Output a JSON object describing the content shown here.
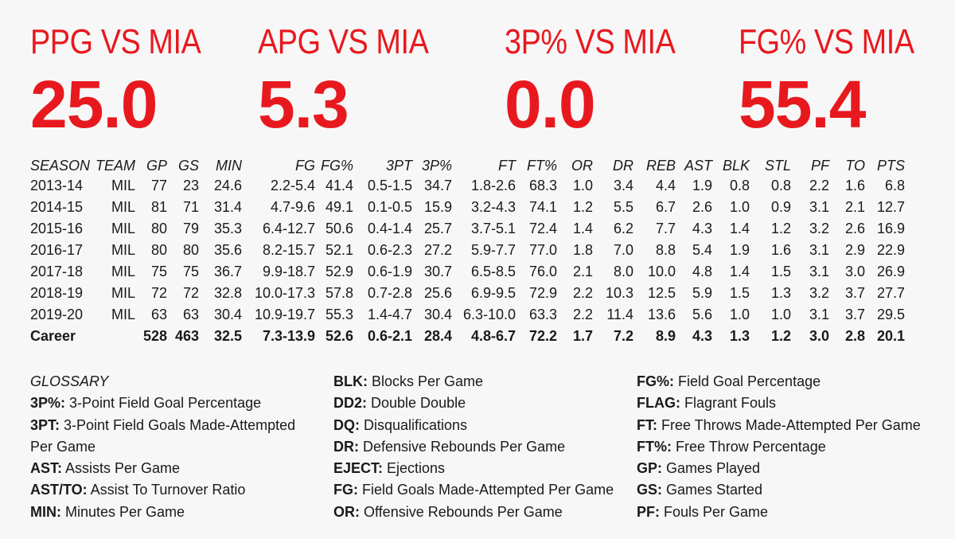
{
  "headline_stats": [
    {
      "label": "PPG VS MIA",
      "value": "25.0"
    },
    {
      "label": "APG VS MIA",
      "value": "5.3"
    },
    {
      "label": "3P% VS MIA",
      "value": "0.0"
    },
    {
      "label": "FG% VS MIA",
      "value": "55.4"
    }
  ],
  "table": {
    "headers": [
      "SEASON",
      "TEAM",
      "GP",
      "GS",
      "MIN",
      "FG",
      "FG%",
      "3PT",
      "3P%",
      "FT",
      "FT%",
      "OR",
      "DR",
      "REB",
      "AST",
      "BLK",
      "STL",
      "PF",
      "TO",
      "PTS"
    ],
    "rows": [
      [
        "2013-14",
        "MIL",
        "77",
        "23",
        "24.6",
        "2.2-5.4",
        "41.4",
        "0.5-1.5",
        "34.7",
        "1.8-2.6",
        "68.3",
        "1.0",
        "3.4",
        "4.4",
        "1.9",
        "0.8",
        "0.8",
        "2.2",
        "1.6",
        "6.8"
      ],
      [
        "2014-15",
        "MIL",
        "81",
        "71",
        "31.4",
        "4.7-9.6",
        "49.1",
        "0.1-0.5",
        "15.9",
        "3.2-4.3",
        "74.1",
        "1.2",
        "5.5",
        "6.7",
        "2.6",
        "1.0",
        "0.9",
        "3.1",
        "2.1",
        "12.7"
      ],
      [
        "2015-16",
        "MIL",
        "80",
        "79",
        "35.3",
        "6.4-12.7",
        "50.6",
        "0.4-1.4",
        "25.7",
        "3.7-5.1",
        "72.4",
        "1.4",
        "6.2",
        "7.7",
        "4.3",
        "1.4",
        "1.2",
        "3.2",
        "2.6",
        "16.9"
      ],
      [
        "2016-17",
        "MIL",
        "80",
        "80",
        "35.6",
        "8.2-15.7",
        "52.1",
        "0.6-2.3",
        "27.2",
        "5.9-7.7",
        "77.0",
        "1.8",
        "7.0",
        "8.8",
        "5.4",
        "1.9",
        "1.6",
        "3.1",
        "2.9",
        "22.9"
      ],
      [
        "2017-18",
        "MIL",
        "75",
        "75",
        "36.7",
        "9.9-18.7",
        "52.9",
        "0.6-1.9",
        "30.7",
        "6.5-8.5",
        "76.0",
        "2.1",
        "8.0",
        "10.0",
        "4.8",
        "1.4",
        "1.5",
        "3.1",
        "3.0",
        "26.9"
      ],
      [
        "2018-19",
        "MIL",
        "72",
        "72",
        "32.8",
        "10.0-17.3",
        "57.8",
        "0.7-2.8",
        "25.6",
        "6.9-9.5",
        "72.9",
        "2.2",
        "10.3",
        "12.5",
        "5.9",
        "1.5",
        "1.3",
        "3.2",
        "3.7",
        "27.7"
      ],
      [
        "2019-20",
        "MIL",
        "63",
        "63",
        "30.4",
        "10.9-19.7",
        "55.3",
        "1.4-4.7",
        "30.4",
        "6.3-10.0",
        "63.3",
        "2.2",
        "11.4",
        "13.6",
        "5.6",
        "1.0",
        "1.0",
        "3.1",
        "3.7",
        "29.5"
      ]
    ],
    "career": [
      "Career",
      "",
      "528",
      "463",
      "32.5",
      "7.3-13.9",
      "52.6",
      "0.6-2.1",
      "28.4",
      "4.8-6.7",
      "72.2",
      "1.7",
      "7.2",
      "8.9",
      "4.3",
      "1.3",
      "1.2",
      "3.0",
      "2.8",
      "20.1"
    ]
  },
  "glossary": {
    "heading": "GLOSSARY",
    "col1": [
      {
        "term": "3P%:",
        "def": " 3-Point Field Goal Percentage"
      },
      {
        "term": "3PT:",
        "def": " 3-Point Field Goals Made-Attempted"
      },
      {
        "term": "",
        "def": "Per Game"
      },
      {
        "term": "AST:",
        "def": " Assists Per Game"
      },
      {
        "term": "AST/TO:",
        "def": " Assist To Turnover Ratio"
      },
      {
        "term": "MIN:",
        "def": " Minutes Per Game"
      }
    ],
    "col2": [
      {
        "term": "BLK:",
        "def": " Blocks Per Game"
      },
      {
        "term": "DD2:",
        "def": " Double Double"
      },
      {
        "term": "DQ:",
        "def": " Disqualifications"
      },
      {
        "term": "DR:",
        "def": " Defensive Rebounds Per Game"
      },
      {
        "term": "EJECT:",
        "def": " Ejections"
      },
      {
        "term": "FG:",
        "def": " Field Goals Made-Attempted Per Game"
      },
      {
        "term": "OR:",
        "def": " Offensive Rebounds Per Game"
      }
    ],
    "col3": [
      {
        "term": "FG%:",
        "def": " Field Goal Percentage"
      },
      {
        "term": "FLAG:",
        "def": " Flagrant Fouls"
      },
      {
        "term": "FT:",
        "def": " Free Throws Made-Attempted Per Game"
      },
      {
        "term": "FT%:",
        "def": " Free Throw Percentage"
      },
      {
        "term": "GP:",
        "def": " Games Played"
      },
      {
        "term": "GS:",
        "def": " Games Started"
      },
      {
        "term": "PF:",
        "def": " Fouls Per Game"
      }
    ]
  },
  "colors": {
    "accent": "#e8191e",
    "text": "#1a1a1a",
    "background": "#f7f7f7"
  }
}
